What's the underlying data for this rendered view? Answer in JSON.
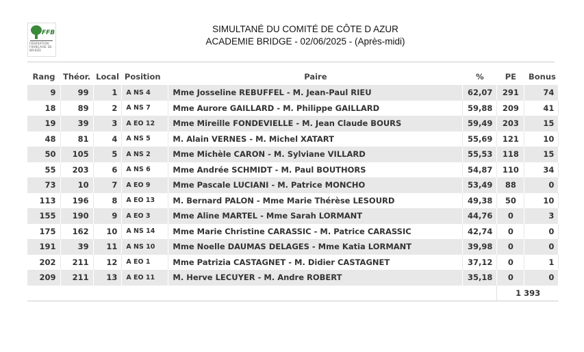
{
  "header": {
    "logo_text": "FFB",
    "logo_sub": "FÉDÉRATION FRANÇAISE DE BRIDGE",
    "title": "SIMULTANÉ DU COMITÉ DE CÔTE D AZUR",
    "subtitle": "ACADEMIE BRIDGE - 02/06/2025 - (Après-midi)"
  },
  "table": {
    "columns": [
      "Rang",
      "Théor.",
      "Local",
      "Position",
      "Paire",
      "%",
      "PE",
      "Bonus"
    ],
    "rows": [
      [
        "9",
        "99",
        "1",
        "A NS 4",
        "Mme Josseline REBUFFEL - M. Jean-Paul RIEU",
        "62,07",
        "291",
        "74"
      ],
      [
        "18",
        "89",
        "2",
        "A NS 7",
        "Mme Aurore GAILLARD - M. Philippe GAILLARD",
        "59,88",
        "209",
        "41"
      ],
      [
        "19",
        "39",
        "3",
        "A EO 12",
        "Mme Mireille FONDEVIELLE - M. Jean Claude BOURS",
        "59,49",
        "203",
        "15"
      ],
      [
        "48",
        "81",
        "4",
        "A NS 5",
        "M. Alain VERNES - M. Michel XATART",
        "55,69",
        "121",
        "10"
      ],
      [
        "50",
        "105",
        "5",
        "A NS 2",
        "Mme Michèle CARON - M. Sylviane VILLARD",
        "55,53",
        "118",
        "15"
      ],
      [
        "55",
        "203",
        "6",
        "A NS 6",
        "Mme Andrée SCHMIDT - M. Paul BOUTHORS",
        "54,87",
        "110",
        "34"
      ],
      [
        "73",
        "10",
        "7",
        "A EO 9",
        "Mme Pascale LUCIANI - M. Patrice MONCHO",
        "53,49",
        "88",
        "0"
      ],
      [
        "113",
        "196",
        "8",
        "A EO 13",
        "M. Bernard PALON - Mme Marie Thérèse LESOURD",
        "49,38",
        "50",
        "10"
      ],
      [
        "155",
        "190",
        "9",
        "A EO 3",
        "Mme Aline MARTEL - Mme Sarah LORMANT",
        "44,76",
        "0",
        "3"
      ],
      [
        "175",
        "162",
        "10",
        "A NS 14",
        "Mme Marie Christine CARASSIC - M. Patrice CARASSIC",
        "42,74",
        "0",
        "0"
      ],
      [
        "191",
        "39",
        "11",
        "A NS 10",
        "Mme Noelle DAUMAS DELAGES - Mme Katia LORMANT",
        "39,98",
        "0",
        "0"
      ],
      [
        "202",
        "211",
        "12",
        "A EO 1",
        "Mme Patrizia CASTAGNET - M. Didier CASTAGNET",
        "37,12",
        "0",
        "1"
      ],
      [
        "209",
        "211",
        "13",
        "A EO 11",
        "M. Herve LECUYER - M. Andre ROBERT",
        "35,18",
        "0",
        "0"
      ]
    ],
    "total_pe": "1 393"
  }
}
